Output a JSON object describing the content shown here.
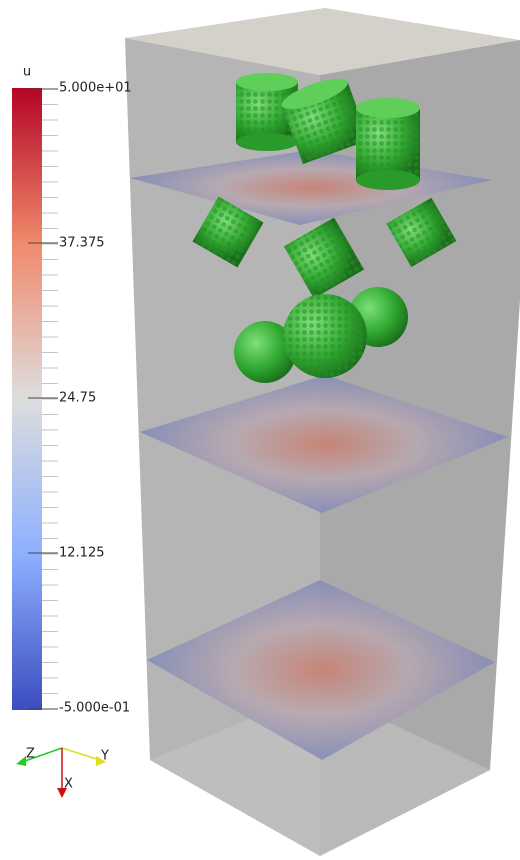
{
  "colorbar": {
    "title": "u",
    "labels": [
      "5.000e+01",
      "37.375",
      "24.75",
      "12.125",
      "-5.000e-01"
    ]
  },
  "axes_triad": {
    "labels": [
      "Z",
      "Y",
      "X"
    ]
  }
}
